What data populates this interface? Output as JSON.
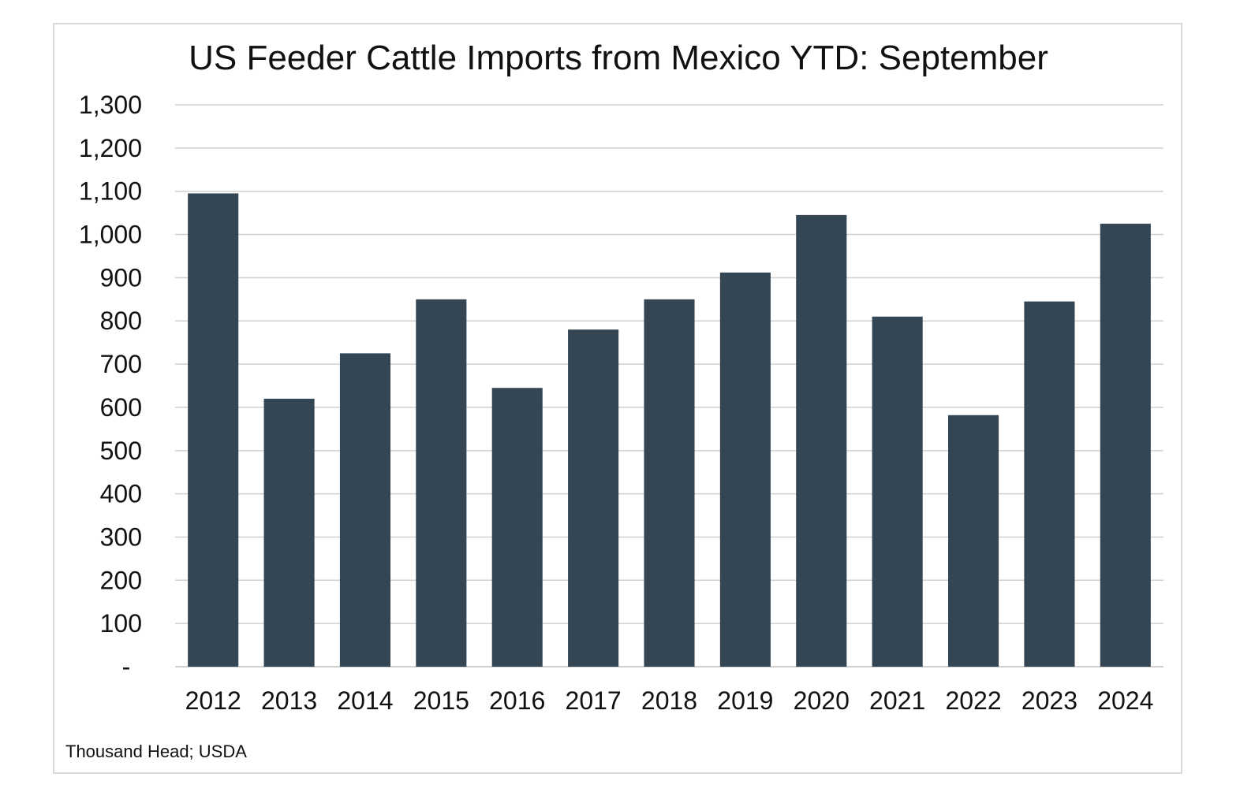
{
  "chart_data": {
    "type": "bar",
    "title": "US Feeder Cattle Imports from Mexico YTD: September",
    "categories": [
      "2012",
      "2013",
      "2014",
      "2015",
      "2016",
      "2017",
      "2018",
      "2019",
      "2020",
      "2021",
      "2022",
      "2023",
      "2024"
    ],
    "series": [
      {
        "name": "Feeder Cattle Imports",
        "values": [
          1095,
          620,
          725,
          850,
          645,
          780,
          850,
          912,
          1045,
          810,
          582,
          845,
          1025
        ]
      }
    ],
    "ylim": [
      0,
      1300
    ],
    "yticks": [
      0,
      100,
      200,
      300,
      400,
      500,
      600,
      700,
      800,
      900,
      1000,
      1100,
      1200,
      1300
    ],
    "ytick_labels": [
      "-",
      "100",
      "200",
      "300",
      "400",
      "500",
      "600",
      "700",
      "800",
      "900",
      "1,000",
      "1,100",
      "1,200",
      "1,300"
    ],
    "xlabel": "",
    "ylabel": "",
    "grid": true,
    "bar_color": "#344654",
    "grid_color": "#d0d0d0",
    "source_note": "Thousand Head; USDA"
  }
}
